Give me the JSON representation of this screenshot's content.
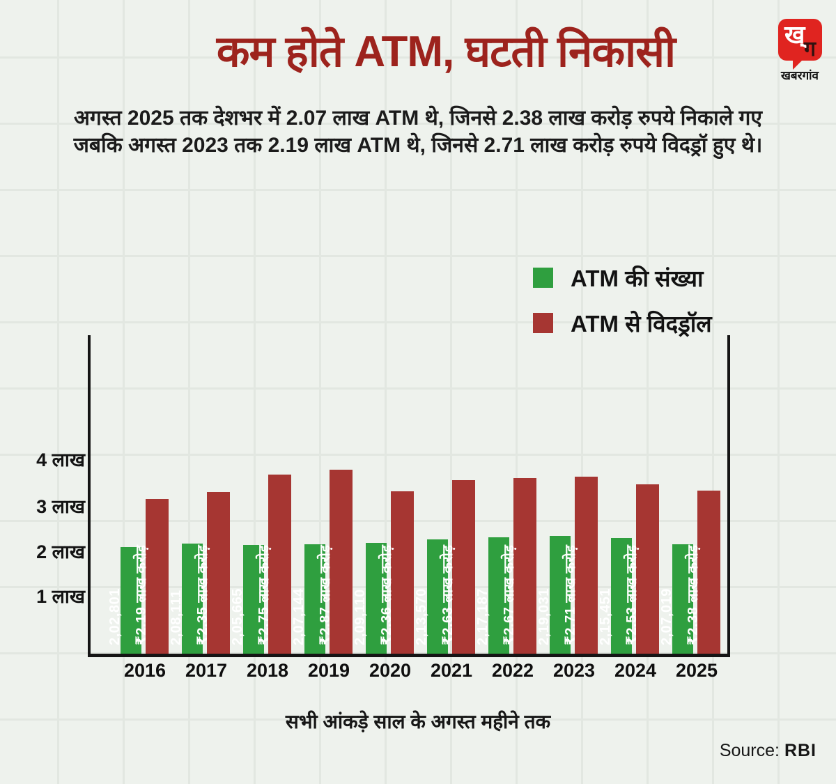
{
  "page": {
    "title": "कम होते ATM, घटती निकासी",
    "subtitle_line1": "अगस्त 2025 तक देशभर में 2.07 लाख ATM थे, जिनसे 2.38 लाख करोड़ रुपये निकाले गए",
    "subtitle_line2": "जबकि अगस्त 2023 तक 2.19 लाख ATM थे, जिनसे 2.71 लाख करोड़ रुपये विदड्रॉ हुए थे।",
    "footer_note": "सभी आंकड़े साल के अगस्त महीने तक",
    "source_label": "Source:",
    "source_value": "RBI",
    "background_color": "#eef2ed",
    "title_color": "#9d231d"
  },
  "logo": {
    "bubble_glyph_top": "ख्",
    "bubble_glyph_bottom": "ग",
    "name": "खबरगांव",
    "bubble_color": "#e02420"
  },
  "legend": [
    {
      "label": "ATM की संख्या",
      "color": "#2f9f3f"
    },
    {
      "label": "ATM से विदड्रॉल",
      "color": "#a63632"
    }
  ],
  "chart_data": {
    "type": "bar",
    "title": "कम होते ATM, घटती निकासी",
    "categories": [
      "2016",
      "2017",
      "2018",
      "2019",
      "2020",
      "2021",
      "2022",
      "2023",
      "2024",
      "2025"
    ],
    "series": [
      {
        "name": "ATM की संख्या",
        "color": "#2f9f3f",
        "unit": "ATM (count)",
        "values": [
          202801,
          208111,
          205665,
          207144,
          209110,
          213570,
          217187,
          219031,
          215451,
          207019
        ],
        "labels": [
          "2,02,801",
          "2,08,111",
          "2,05,665",
          "2,07,144",
          "2,09,110",
          "2,13,570",
          "2,17,187",
          "2,19,031",
          "2,15,451",
          "2,07,019"
        ]
      },
      {
        "name": "ATM से विदड्रॉल",
        "color": "#a63632",
        "unit": "लाख करोड़ ₹",
        "values": [
          2.19,
          2.35,
          2.75,
          2.87,
          2.36,
          2.63,
          2.67,
          2.71,
          2.53,
          2.38
        ],
        "labels": [
          "₹2.19 लाख करोड़",
          "₹2.35 लाख करोड़",
          "₹2.75 लाख करोड़",
          "₹2.87 लाख करोड़",
          "₹2.36 लाख करोड़",
          "₹2.63 लाख करोड़",
          "₹2.67 लाख करोड़",
          "₹2.71 लाख करोड़",
          "₹2.53 लाख करोड़",
          "₹2.38 लाख करोड़"
        ]
      }
    ],
    "y_axis_tick_labels": [
      "4 लाख",
      "3 लाख",
      "2 लाख",
      "1 लाख"
    ],
    "x_note": "सभी आंकड़े साल के अगस्त महीने तक",
    "source": "RBI",
    "legend_position": "top-right",
    "grid": false
  }
}
